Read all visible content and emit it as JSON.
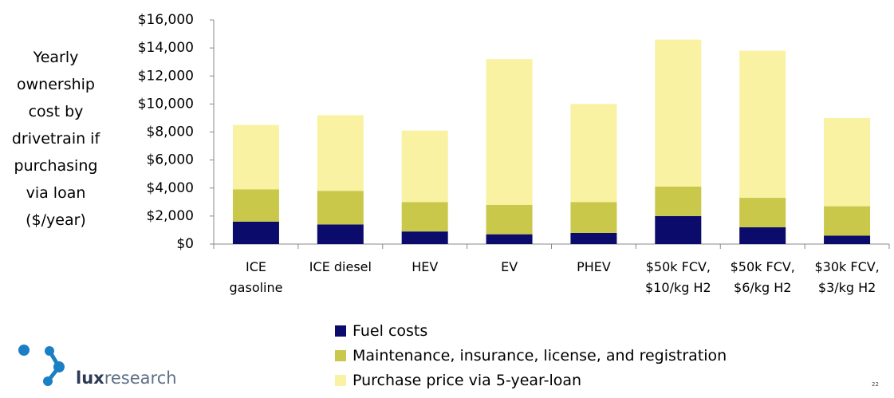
{
  "chart_data": {
    "type": "stacked_bar",
    "y_axis_title": "Yearly\nownership\ncost by\ndrivetrain if\npurchasing\nvia loan\n($/year)",
    "categories": [
      "ICE\ngasoline",
      "ICE diesel",
      "HEV",
      "EV",
      "PHEV",
      "$50k FCV,\n$10/kg H2",
      "$50k FCV,\n$6/kg H2",
      "$30k FCV,\n$3/kg H2"
    ],
    "series": [
      {
        "name": "Fuel costs",
        "color": "#0b0b6b",
        "values": [
          1600,
          1400,
          900,
          700,
          800,
          2000,
          1200,
          600
        ]
      },
      {
        "name": "Maintenance, insurance, license, and registration",
        "color": "#c9c84b",
        "values": [
          2300,
          2400,
          2100,
          2100,
          2200,
          2100,
          2100,
          2100
        ]
      },
      {
        "name": "Purchase price via 5-year-loan",
        "color": "#f8f2a2",
        "values": [
          4600,
          5400,
          5100,
          10400,
          7000,
          10500,
          10500,
          6300
        ]
      }
    ],
    "ylim": [
      0,
      16000
    ],
    "yticks": [
      {
        "value": 0,
        "label": "$0"
      },
      {
        "value": 2000,
        "label": "$2,000"
      },
      {
        "value": 4000,
        "label": "$4,000"
      },
      {
        "value": 6000,
        "label": "$6,000"
      },
      {
        "value": 8000,
        "label": "$8,000"
      },
      {
        "value": 10000,
        "label": "$10,000"
      },
      {
        "value": 12000,
        "label": "$12,000"
      },
      {
        "value": 14000,
        "label": "$14,000"
      },
      {
        "value": 16000,
        "label": "$16,000"
      }
    ],
    "grid": false
  },
  "footer": {
    "logo_bold": "lux",
    "logo_rest": "research",
    "page_number": "22"
  }
}
